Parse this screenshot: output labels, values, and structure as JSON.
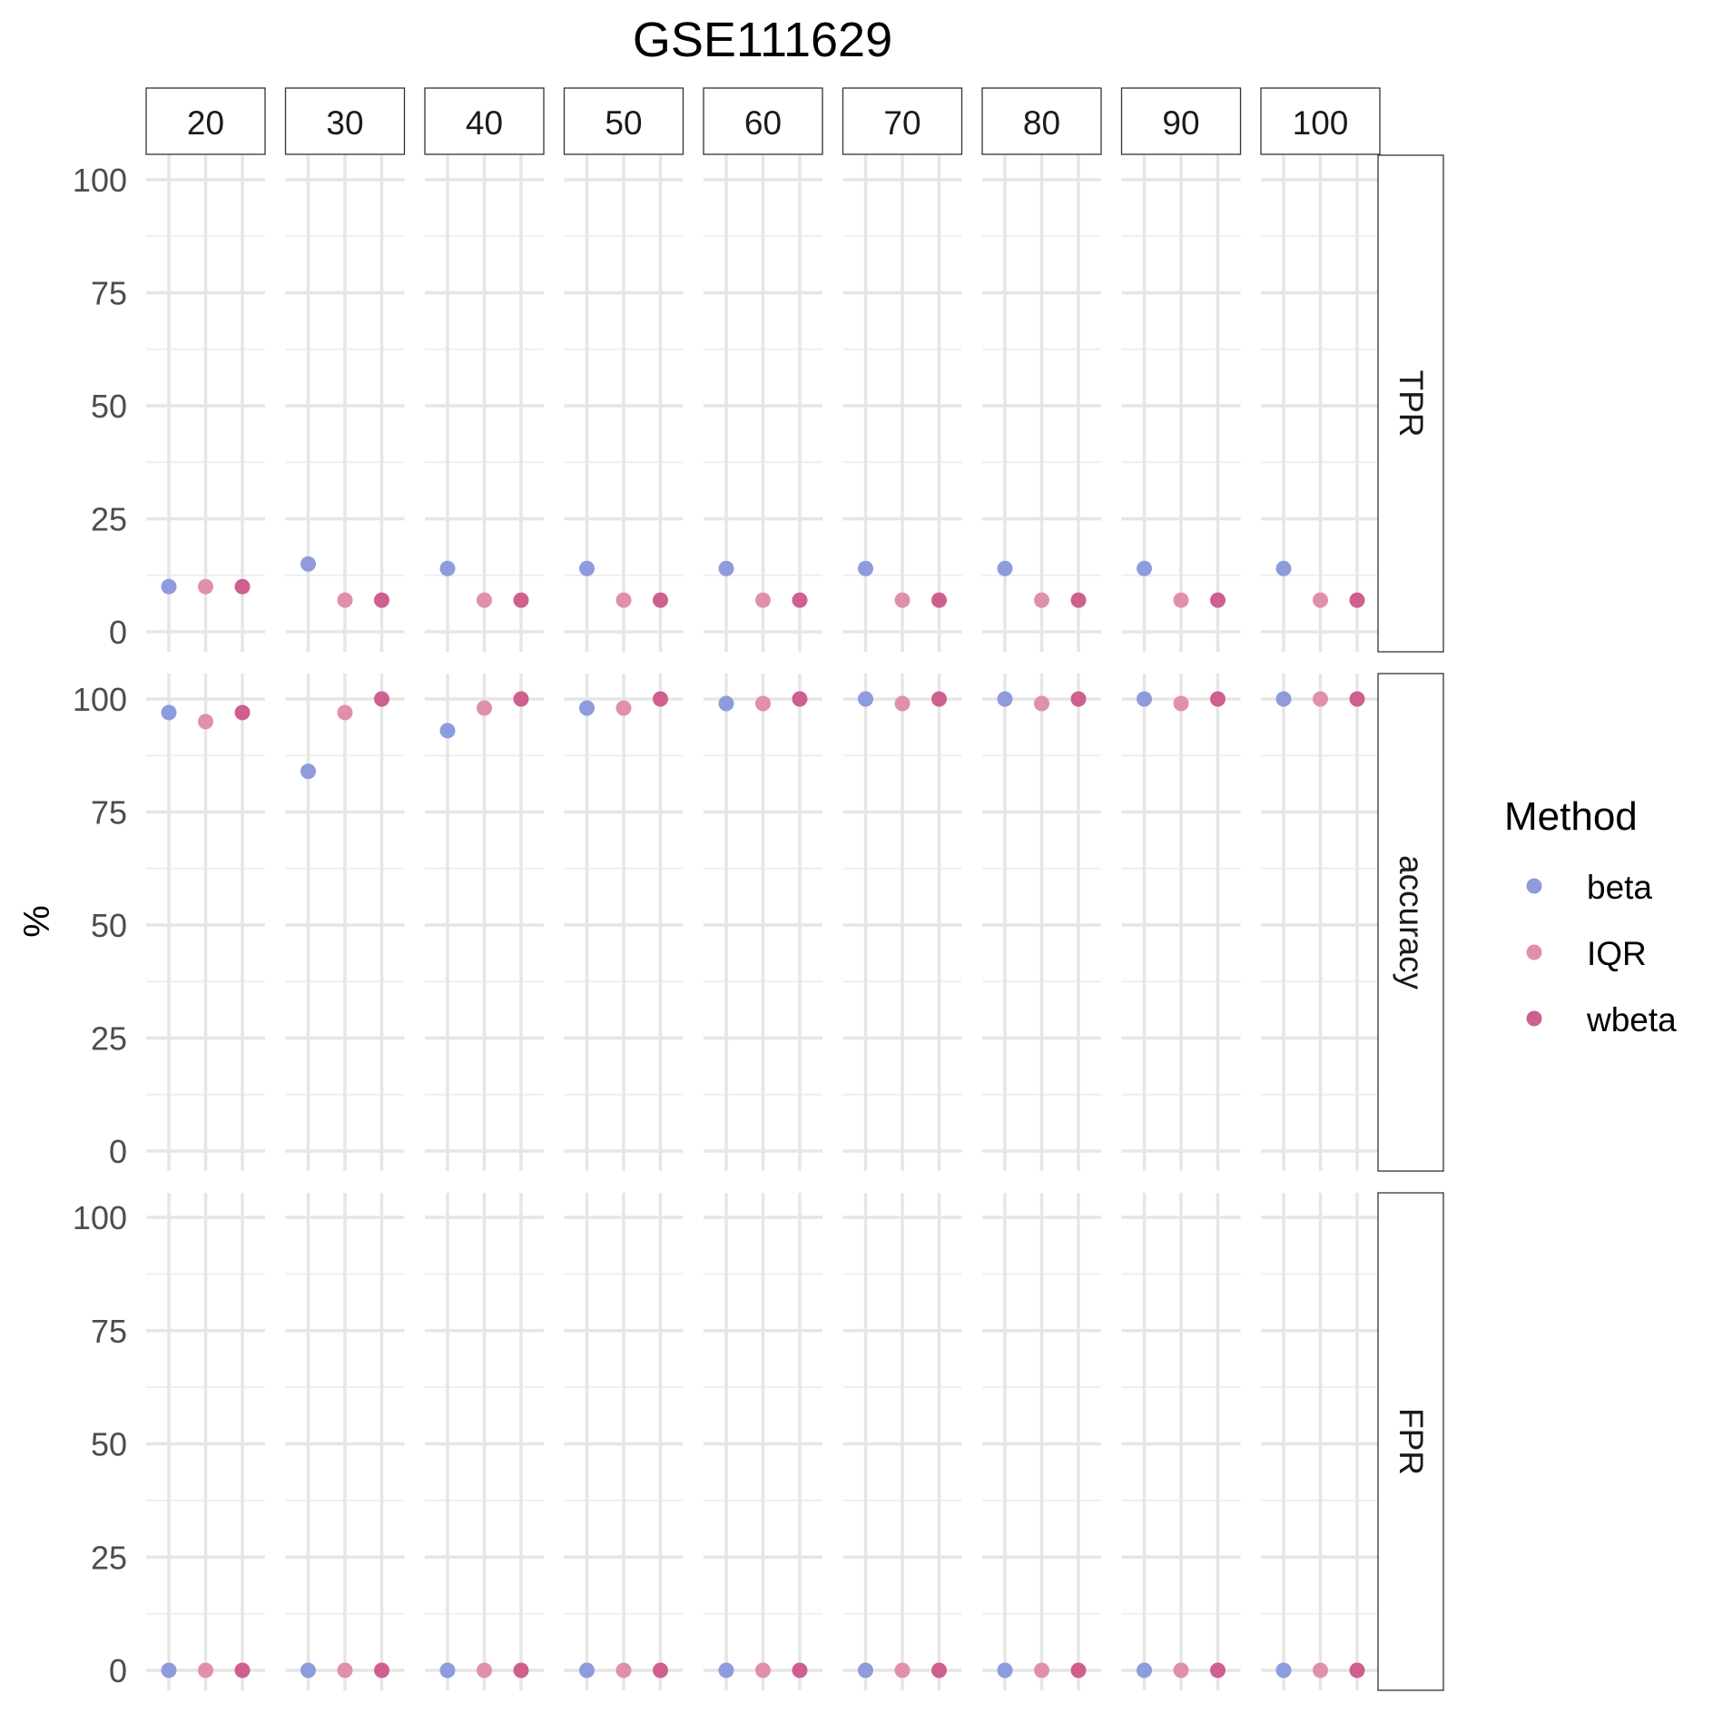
{
  "chart_data": {
    "type": "scatter",
    "title": "GSE111629",
    "ylabel": "%",
    "xlabel": "",
    "ylim": [
      0,
      100
    ],
    "y_ticks": [
      "0",
      "25",
      "50",
      "75",
      "100"
    ],
    "grid": true,
    "legend_placement": "right",
    "legend": {
      "title": "Method",
      "items": [
        {
          "name": "beta",
          "color": "#8E9BDC"
        },
        {
          "name": "IQR",
          "color": "#E08FAD"
        },
        {
          "name": "wbeta",
          "color": "#CE5F8E"
        }
      ]
    },
    "columns": [
      "20",
      "30",
      "40",
      "50",
      "60",
      "70",
      "80",
      "90",
      "100"
    ],
    "methods": [
      "beta",
      "IQR",
      "wbeta"
    ],
    "rows": [
      {
        "label": "TPR",
        "values": {
          "beta": [
            10,
            15,
            14,
            14,
            14,
            14,
            14,
            14,
            14
          ],
          "IQR": [
            10,
            7,
            7,
            7,
            7,
            7,
            7,
            7,
            7
          ],
          "wbeta": [
            10,
            7,
            7,
            7,
            7,
            7,
            7,
            7,
            7
          ]
        }
      },
      {
        "label": "accuracy",
        "values": {
          "beta": [
            97,
            84,
            93,
            98,
            99,
            100,
            100,
            100,
            100
          ],
          "IQR": [
            95,
            97,
            98,
            98,
            99,
            99,
            99,
            99,
            100
          ],
          "wbeta": [
            97,
            100,
            100,
            100,
            100,
            100,
            100,
            100,
            100
          ]
        }
      },
      {
        "label": "FPR",
        "values": {
          "beta": [
            0,
            0,
            0,
            0,
            0,
            0,
            0,
            0,
            0
          ],
          "IQR": [
            0,
            0,
            0,
            0,
            0,
            0,
            0,
            0,
            0
          ],
          "wbeta": [
            0,
            0,
            0,
            0,
            0,
            0,
            0,
            0,
            0
          ]
        }
      }
    ]
  }
}
